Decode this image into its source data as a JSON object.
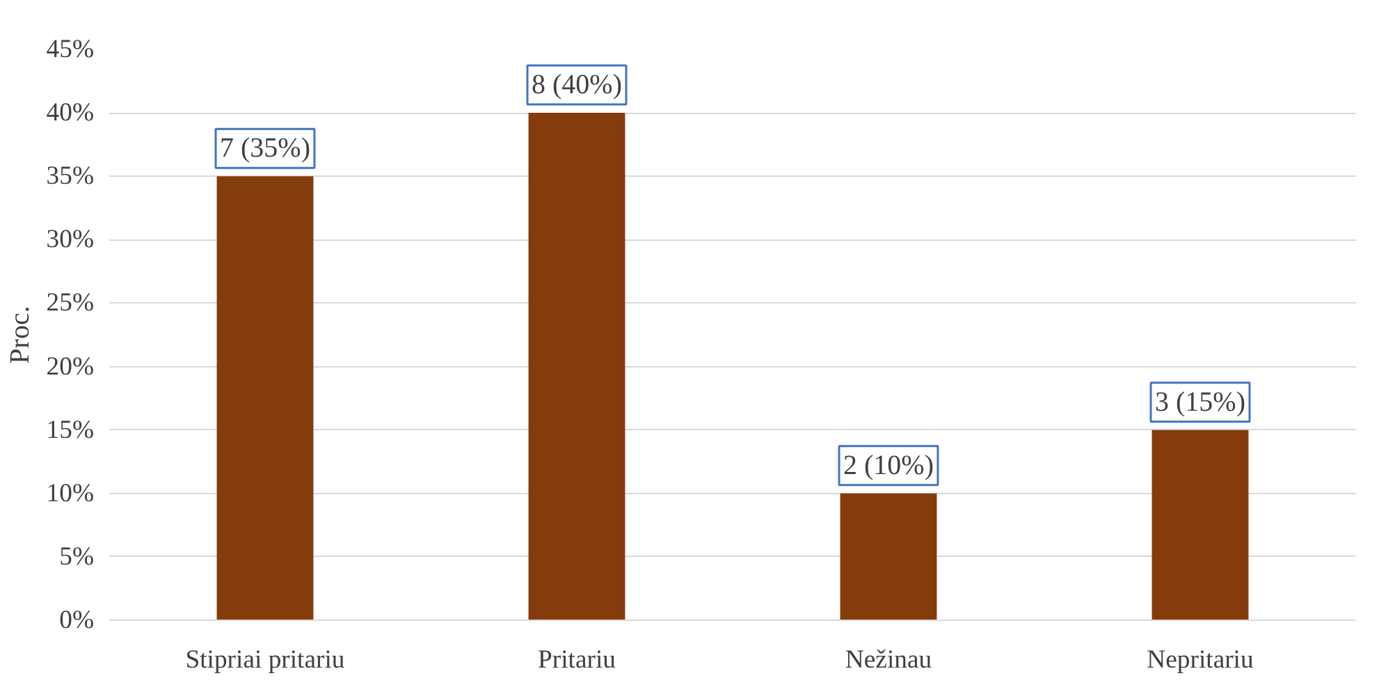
{
  "chart_data": {
    "type": "bar",
    "ylabel": "Proc.",
    "categories": [
      "Stipriai pritariu",
      "Pritariu",
      "Nežinau",
      "Nepritariu"
    ],
    "values": [
      35,
      40,
      10,
      15
    ],
    "color": "#843c0c",
    "value_labels": [
      "7 (35%)",
      "8 (40%)",
      "2 (10%)",
      "3 (15%)"
    ],
    "ylim": [
      0,
      45
    ],
    "yticks": [
      {
        "value": 0,
        "label": "0%"
      },
      {
        "value": 5,
        "label": "5%"
      },
      {
        "value": 10,
        "label": "10%"
      },
      {
        "value": 15,
        "label": "15%"
      },
      {
        "value": 20,
        "label": "20%"
      },
      {
        "value": 25,
        "label": "25%"
      },
      {
        "value": 30,
        "label": "30%"
      },
      {
        "value": 35,
        "label": "35%"
      },
      {
        "value": 40,
        "label": "40%"
      },
      {
        "value": 45,
        "label": "45%"
      }
    ],
    "grid": "y"
  }
}
